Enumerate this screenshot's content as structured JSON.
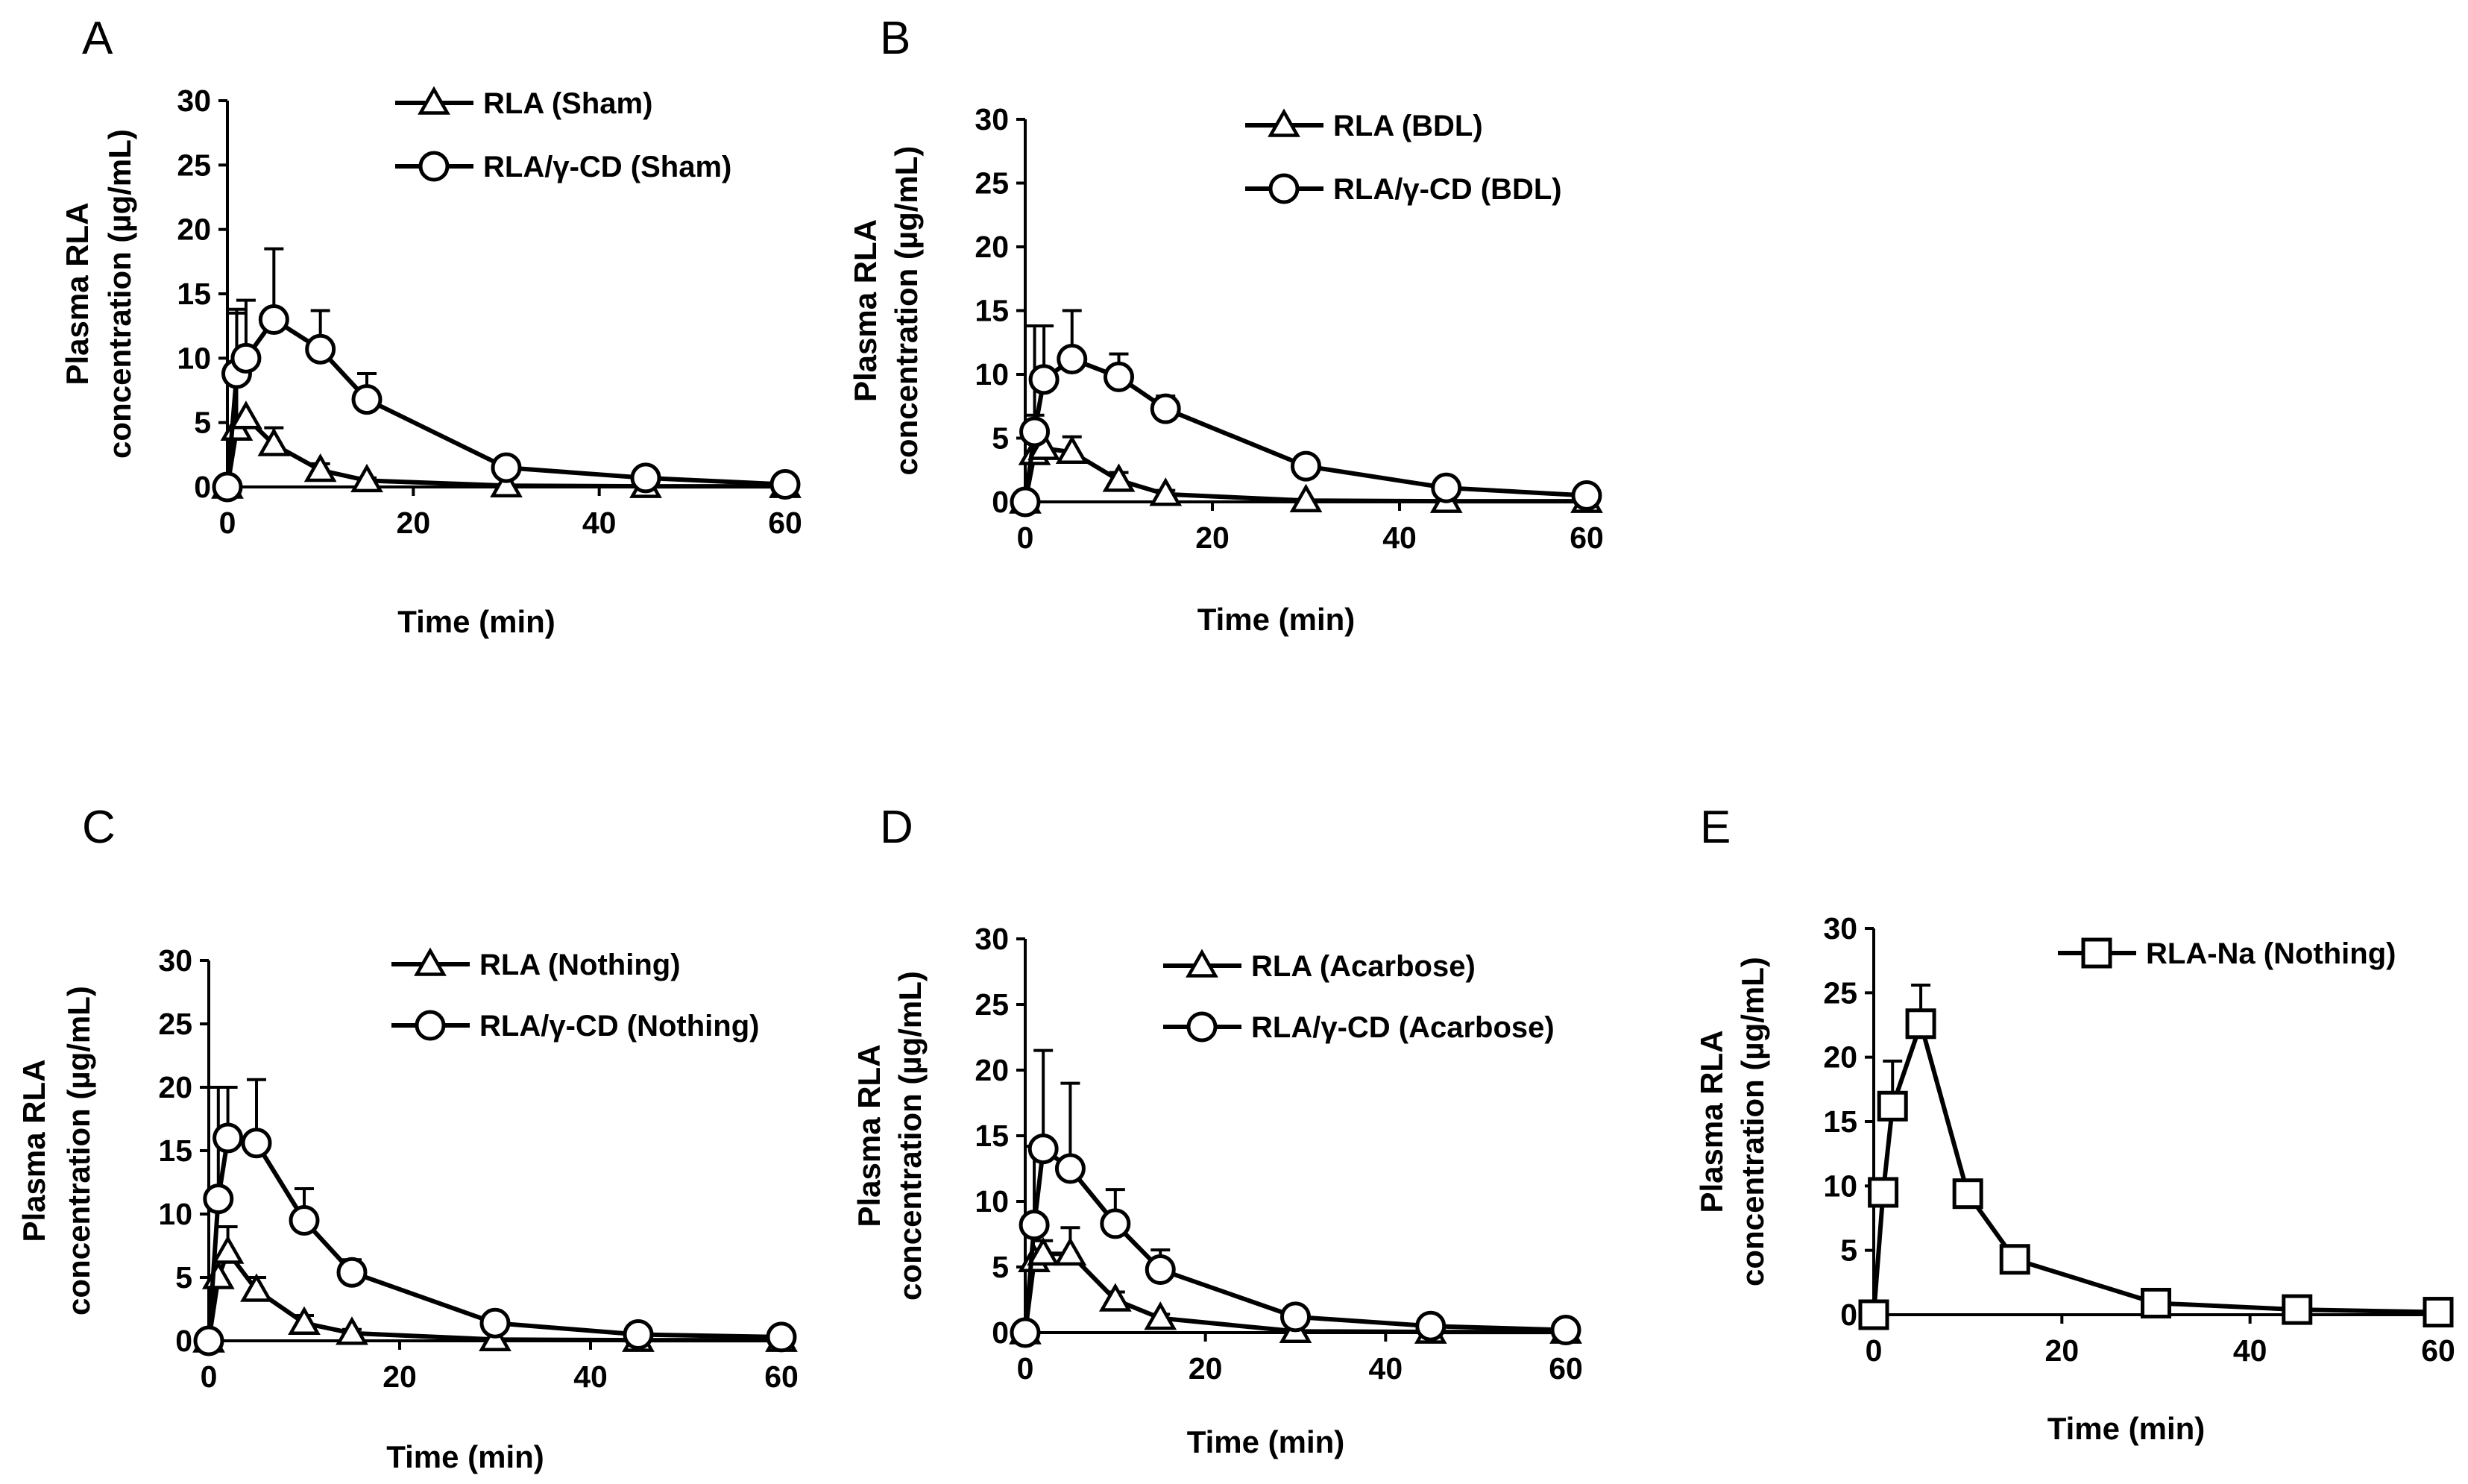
{
  "chart_data": [
    {
      "panel": "A",
      "type": "line",
      "title": "",
      "xlabel": "Time (min)",
      "ylabel_line1": "Plasma RLA",
      "ylabel_line2": "concentration  (µg/mL)",
      "xlim": [
        0,
        60
      ],
      "ylim": [
        0,
        30
      ],
      "xticks": [
        0,
        20,
        40,
        60
      ],
      "yticks": [
        0,
        5,
        10,
        15,
        20,
        25,
        30
      ],
      "grid": false,
      "legend_position": "top-right",
      "series": [
        {
          "name": "RLA (Sham)",
          "marker": "triangle",
          "x": [
            0,
            1,
            2,
            5,
            10,
            15,
            30,
            45,
            60
          ],
          "y": [
            0,
            4.5,
            5.4,
            3.3,
            1.3,
            0.5,
            0.1,
            0.05,
            0.05
          ],
          "err": [
            0,
            9.0,
            0,
            1.3,
            0.5,
            0.2,
            0,
            0,
            0
          ]
        },
        {
          "name": "RLA/γ-CD  (Sham)",
          "marker": "circle",
          "x": [
            0,
            1,
            2,
            5,
            10,
            15,
            30,
            45,
            60
          ],
          "y": [
            0,
            8.8,
            10.0,
            13.0,
            10.7,
            6.8,
            1.5,
            0.7,
            0.2
          ],
          "err": [
            0,
            5.0,
            4.5,
            5.5,
            3.0,
            2.0,
            0.4,
            0.3,
            0
          ]
        }
      ]
    },
    {
      "panel": "B",
      "type": "line",
      "title": "",
      "xlabel": "Time (min)",
      "ylabel_line1": "Plasma RLA",
      "ylabel_line2": "concentration  (µg/mL)",
      "xlim": [
        0,
        60
      ],
      "ylim": [
        0,
        30
      ],
      "xticks": [
        0,
        20,
        40,
        60
      ],
      "yticks": [
        0,
        5,
        10,
        15,
        20,
        25,
        30
      ],
      "grid": false,
      "legend_position": "top-right",
      "series": [
        {
          "name": "RLA (BDL)",
          "marker": "triangle",
          "x": [
            0,
            1,
            2,
            5,
            10,
            15,
            30,
            45,
            60
          ],
          "y": [
            0,
            3.8,
            4.2,
            3.9,
            1.7,
            0.6,
            0.1,
            0.05,
            0.05
          ],
          "err": [
            0,
            3.0,
            0,
            1.2,
            0.6,
            0.3,
            0,
            0,
            0
          ]
        },
        {
          "name": "RLA/γ-CD  (BDL)",
          "marker": "circle",
          "x": [
            0,
            1,
            2,
            5,
            10,
            15,
            30,
            45,
            60
          ],
          "y": [
            0,
            5.5,
            9.6,
            11.2,
            9.8,
            7.3,
            2.8,
            1.1,
            0.5
          ],
          "err": [
            0,
            8.3,
            4.2,
            3.8,
            1.8,
            1.0,
            0.8,
            0.3,
            0
          ]
        }
      ]
    },
    {
      "panel": "C",
      "type": "line",
      "title": "",
      "xlabel": "Time (min)",
      "ylabel_line1": "Plasma RLA",
      "ylabel_line2": "concentration  (µg/mL)",
      "xlim": [
        0,
        60
      ],
      "ylim": [
        0,
        30
      ],
      "xticks": [
        0,
        20,
        40,
        60
      ],
      "yticks": [
        0,
        5,
        10,
        15,
        20,
        25,
        30
      ],
      "grid": false,
      "legend_position": "top-right",
      "series": [
        {
          "name": "RLA (Nothing)",
          "marker": "triangle",
          "x": [
            0,
            1,
            2,
            5,
            10,
            15,
            30,
            45,
            60
          ],
          "y": [
            0,
            5.0,
            7.0,
            4.0,
            1.4,
            0.6,
            0.1,
            0.05,
            0.05
          ],
          "err": [
            0,
            0,
            2.0,
            1.0,
            0.6,
            0.3,
            0,
            0,
            0
          ]
        },
        {
          "name": "RLA/γ-CD (Nothing)",
          "marker": "circle",
          "x": [
            0,
            1,
            2,
            5,
            10,
            15,
            30,
            45,
            60
          ],
          "y": [
            0,
            11.2,
            16.0,
            15.6,
            9.5,
            5.4,
            1.4,
            0.5,
            0.3
          ],
          "err": [
            0,
            8.8,
            4.0,
            5.0,
            2.5,
            1.0,
            0.4,
            0.3,
            0
          ]
        }
      ]
    },
    {
      "panel": "D",
      "type": "line",
      "title": "",
      "xlabel": "Time (min)",
      "ylabel_line1": "Plasma RLA",
      "ylabel_line2": "concentration  (µg/mL)",
      "xlim": [
        0,
        60
      ],
      "ylim": [
        0,
        30
      ],
      "xticks": [
        0,
        20,
        40,
        60
      ],
      "yticks": [
        0,
        5,
        10,
        15,
        20,
        25,
        30
      ],
      "grid": false,
      "legend_position": "top-right",
      "series": [
        {
          "name": "RLA (Acarbose)",
          "marker": "triangle",
          "x": [
            0,
            1,
            2,
            5,
            10,
            15,
            30,
            45,
            60
          ],
          "y": [
            0,
            5.5,
            6.0,
            6.0,
            2.5,
            1.1,
            0.1,
            0.05,
            0.05
          ],
          "err": [
            0,
            0,
            1.0,
            2.0,
            0.6,
            0.3,
            0,
            0,
            0
          ]
        },
        {
          "name": "RLA/γ-CD (Acarbose)",
          "marker": "circle",
          "x": [
            0,
            1,
            2,
            5,
            10,
            15,
            30,
            45,
            60
          ],
          "y": [
            0,
            8.2,
            14.0,
            12.5,
            8.3,
            4.8,
            1.2,
            0.5,
            0.2
          ],
          "err": [
            0,
            6.0,
            7.5,
            6.5,
            2.6,
            1.5,
            0.4,
            0.2,
            0
          ]
        }
      ]
    },
    {
      "panel": "E",
      "type": "line",
      "title": "",
      "xlabel": "Time (min)",
      "ylabel_line1": "Plasma RLA",
      "ylabel_line2": "concentration  (µg/mL)",
      "xlim": [
        0,
        60
      ],
      "ylim": [
        0,
        30
      ],
      "xticks": [
        0,
        20,
        40,
        60
      ],
      "yticks": [
        0,
        5,
        10,
        15,
        20,
        25,
        30
      ],
      "grid": false,
      "legend_position": "top-right",
      "series": [
        {
          "name": "RLA-Na (Nothing)",
          "marker": "square",
          "x": [
            0,
            1,
            2,
            5,
            10,
            15,
            30,
            45,
            60
          ],
          "y": [
            0,
            9.5,
            16.2,
            22.6,
            9.4,
            4.3,
            0.9,
            0.4,
            0.2
          ],
          "err": [
            0,
            0,
            3.5,
            3.0,
            0,
            0,
            0,
            0,
            0
          ]
        }
      ]
    }
  ]
}
